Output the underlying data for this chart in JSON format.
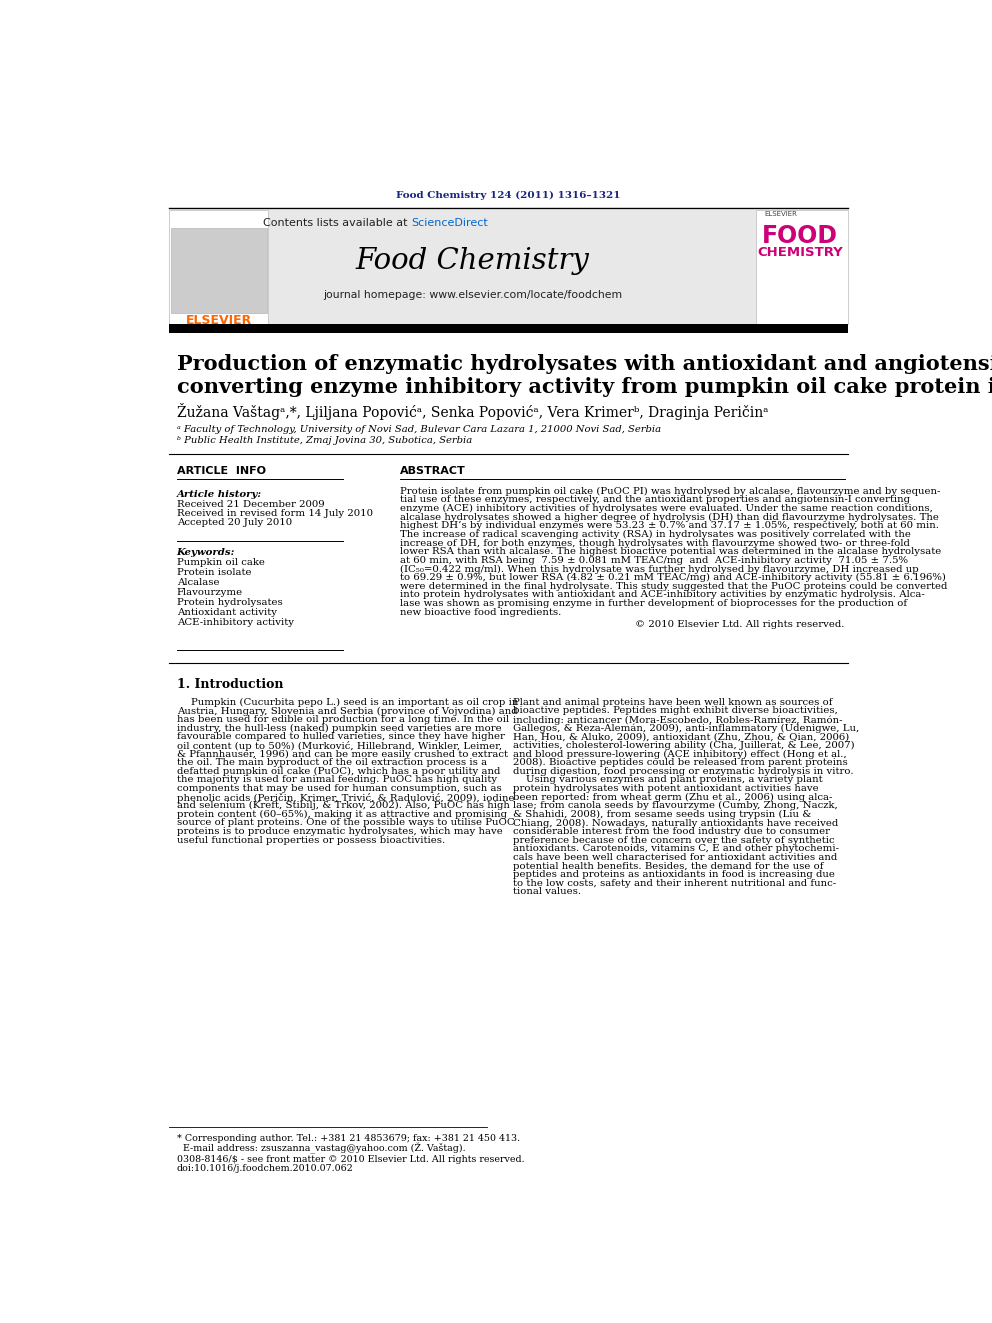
{
  "journal_ref": "Food Chemistry 124 (2011) 1316–1321",
  "journal_ref_color": "#1a237e",
  "contents_text": "Contents lists available at ",
  "sciencedirect_text": "ScienceDirect",
  "sciencedirect_color": "#0066cc",
  "journal_title": "Food Chemistry",
  "journal_homepage": "journal homepage: www.elsevier.com/locate/foodchem",
  "paper_title_line1": "Production of enzymatic hydrolysates with antioxidant and angiotensin-I",
  "paper_title_line2": "converting enzyme inhibitory activity from pumpkin oil cake protein isolate",
  "authors": "Žužana Vaštagᵃ,*, Ljiljana Popovićᵃ, Senka Popovićᵃ, Vera Krimerᵇ, Draginja Peričinᵃ",
  "affil_a": "ᵃ Faculty of Technology, University of Novi Sad, Bulevar Cara Lazara 1, 21000 Novi Sad, Serbia",
  "affil_b": "ᵇ Public Health Institute, Zmaj Jovina 30, Subotica, Serbia",
  "article_info_header": "ARTICLE  INFO",
  "abstract_header": "ABSTRACT",
  "article_history_label": "Article history:",
  "received1": "Received 21 December 2009",
  "received2": "Received in revised form 14 July 2010",
  "accepted": "Accepted 20 July 2010",
  "keywords_label": "Keywords:",
  "keywords": [
    "Pumpkin oil cake",
    "Protein isolate",
    "Alcalase",
    "Flavourzyme",
    "Protein hydrolysates",
    "Antioxidant activity",
    "ACE-inhibitory activity"
  ],
  "abstract_lines": [
    "Protein isolate from pumpkin oil cake (PuOC PI) was hydrolysed by alcalase, flavourzyme and by sequen-",
    "tial use of these enzymes, respectively, and the antioxidant properties and angiotensin-I converting",
    "enzyme (ACE) inhibitory activities of hydrolysates were evaluated. Under the same reaction conditions,",
    "alcalase hydrolysates showed a higher degree of hydrolysis (DH) than did flavourzyme hydrolysates. The",
    "highest DH’s by individual enzymes were 53.23 ± 0.7% and 37.17 ± 1.05%, respectively, both at 60 min.",
    "The increase of radical scavenging activity (RSA) in hydrolysates was positively correlated with the",
    "increase of DH, for both enzymes, though hydrolysates with flavourzyme showed two- or three-fold",
    "lower RSA than with alcalase. The highest bioactive potential was determined in the alcalase hydrolysate",
    "at 60 min, with RSA being  7.59 ± 0.081 mM TEAC/mg  and  ACE-inhibitory activity  71.05 ± 7.5%",
    "(IC₅₀=0.422 mg/ml). When this hydrolysate was further hydrolysed by flavourzyme, DH increased up",
    "to 69.29 ± 0.9%, but lower RSA (4.82 ± 0.21 mM TEAC/mg) and ACE-inhibitory activity (55.81 ± 6.196%)",
    "were determined in the final hydrolysate. This study suggested that the PuOC proteins could be converted",
    "into protein hydrolysates with antioxidant and ACE-inhibitory activities by enzymatic hydrolysis. Alca-",
    "lase was shown as promising enzyme in further development of bioprocesses for the production of",
    "new bioactive food ingredients."
  ],
  "copyright": "© 2010 Elsevier Ltd. All rights reserved.",
  "intro_header": "1. Introduction",
  "col1_lines": [
    "Pumpkin (Cucurbita pepo L.) seed is an important as oil crop in",
    "Austria, Hungary, Slovenia and Serbia (province of Vojvodina) and",
    "has been used for edible oil production for a long time. In the oil",
    "industry, the hull-less (naked) pumpkin seed varieties are more",
    "favourable compared to hulled varieties, since they have higher",
    "oil content (up to 50%) (Murković, Hillebrand, Winkler, Leimer,",
    "& Pfannhauser, 1996) and can be more easily crushed to extract",
    "the oil. The main byproduct of the oil extraction process is a",
    "defatted pumpkin oil cake (PuOC), which has a poor utility and",
    "the majority is used for animal feeding. PuOC has high quality",
    "components that may be used for human consumption, such as",
    "phenolic acids (Peričin, Krimer, Trivić, & Radulović, 2009), iodine",
    "and selenium (Kreft, Stibilj, & Trkov, 2002). Also, PuOC has high",
    "protein content (60–65%), making it as attractive and promising",
    "source of plant proteins. One of the possible ways to utilise PuOC",
    "proteins is to produce enzymatic hydrolysates, which may have",
    "useful functional properties or possess bioactivities."
  ],
  "col2_lines": [
    "Plant and animal proteins have been well known as sources of",
    "bioactive peptides. Peptides might exhibit diverse bioactivities,",
    "including: anticancer (Mora-Escobedo, Robles-Ramírez, Ramón-",
    "Gallegos, & Reza-Alemán, 2009), anti-inflammatory (Udenigwe, Lu,",
    "Han, Hou, & Aluko, 2009), antioxidant (Zhu, Zhou, & Qian, 2006)",
    "activities, cholesterol-lowering ability (Cha, Juillerat, & Lee, 2007)",
    "and blood pressure-lowering (ACE inhibitory) effect (Hong et al.,",
    "2008). Bioactive peptides could be released from parent proteins",
    "during digestion, food processing or enzymatic hydrolysis in vitro.",
    "    Using various enzymes and plant proteins, a variety plant",
    "protein hydrolysates with potent antioxidant activities have",
    "been reported: from wheat germ (Zhu et al., 2006) using alca-",
    "lase; from canola seeds by flavourzyme (Cumby, Zhong, Naczk,",
    "& Shahidi, 2008), from sesame seeds using trypsin (Liu &",
    "Chiang, 2008). Nowadays, naturally antioxidants have received",
    "considerable interest from the food industry due to consumer",
    "preference because of the concern over the safety of synthetic",
    "antioxidants. Carotenoids, vitamins C, E and other phytochemi-",
    "cals have been well characterised for antioxidant activities and",
    "potential health benefits. Besides, the demand for the use of",
    "peptides and proteins as antioxidants in food is increasing due",
    "to the low costs, safety and their inherent nutritional and func-",
    "tional values."
  ],
  "footer_line1": "* Corresponding author. Tel.: +381 21 4853679; fax: +381 21 450 413.",
  "footer_line2": "  E-mail address: zsuszanna_vastag@yahoo.com (Ž. Vaštag).",
  "issn_line1": "0308-8146/$ - see front matter © 2010 Elsevier Ltd. All rights reserved.",
  "issn_line2": "doi:10.1016/j.foodchem.2010.07.062",
  "bg_header_color": "#e8e8e8",
  "link_color": "#0055aa",
  "orange_color": "#FF6600",
  "pink_color": "#cc0077"
}
